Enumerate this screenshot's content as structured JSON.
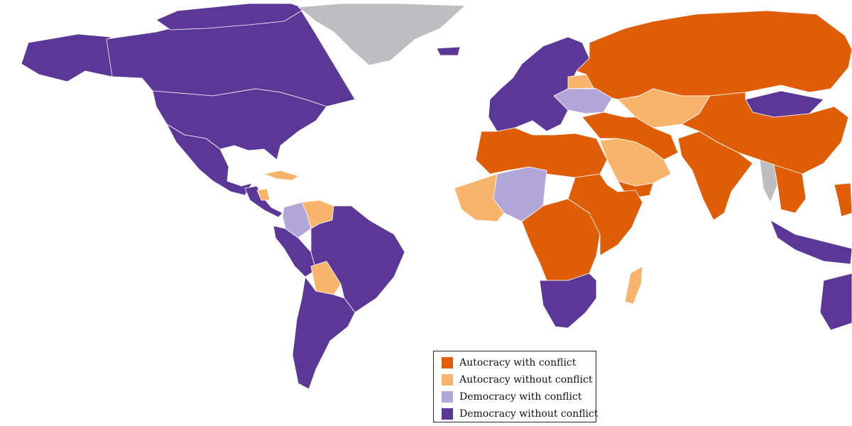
{
  "colors": {
    "autocracy_with_conflict": "#e05d08",
    "autocracy_without_conflict": "#f9b46b",
    "democracy_with_conflict": "#b0a6d8",
    "democracy_without_conflict": "#5b3898",
    "no_data": "#bebdc0",
    "border": "#ffffff"
  },
  "legend": {
    "items": [
      {
        "label": "Autocracy with conflict",
        "color": "#e05d08"
      },
      {
        "label": "Autocracy without conflict",
        "color": "#f9b46b"
      },
      {
        "label": "Democracy with conflict",
        "color": "#b0a6d8"
      },
      {
        "label": "Democracy without conflict",
        "color": "#5b3898"
      }
    ]
  },
  "regions": [
    {
      "name": "Canada",
      "category": "democracy_without_conflict"
    },
    {
      "name": "United States",
      "category": "democracy_without_conflict"
    },
    {
      "name": "Alaska",
      "category": "democracy_without_conflict"
    },
    {
      "name": "Mexico",
      "category": "democracy_without_conflict"
    },
    {
      "name": "Central America",
      "category": "democracy_without_conflict"
    },
    {
      "name": "Cuba",
      "category": "autocracy_without_conflict"
    },
    {
      "name": "Nicaragua",
      "category": "autocracy_without_conflict"
    },
    {
      "name": "Colombia",
      "category": "democracy_with_conflict"
    },
    {
      "name": "Venezuela",
      "category": "autocracy_without_conflict"
    },
    {
      "name": "Brazil",
      "category": "democracy_without_conflict"
    },
    {
      "name": "Peru / Ecuador",
      "category": "democracy_without_conflict"
    },
    {
      "name": "Bolivia",
      "category": "autocracy_without_conflict"
    },
    {
      "name": "Southern Cone",
      "category": "democracy_without_conflict"
    },
    {
      "name": "Greenland",
      "category": "no_data"
    },
    {
      "name": "Iceland",
      "category": "democracy_without_conflict"
    },
    {
      "name": "Europe",
      "category": "democracy_without_conflict"
    },
    {
      "name": "Ukraine",
      "category": "democracy_with_conflict"
    },
    {
      "name": "Belarus",
      "category": "autocracy_without_conflict"
    },
    {
      "name": "Russia",
      "category": "autocracy_with_conflict"
    },
    {
      "name": "Kazakhstan",
      "category": "autocracy_without_conflict"
    },
    {
      "name": "Mongolia",
      "category": "democracy_without_conflict"
    },
    {
      "name": "China",
      "category": "autocracy_with_conflict"
    },
    {
      "name": "Middle East",
      "category": "autocracy_with_conflict"
    },
    {
      "name": "Saudi Arabia",
      "category": "autocracy_without_conflict"
    },
    {
      "name": "Yemen",
      "category": "autocracy_with_conflict"
    },
    {
      "name": "India",
      "category": "autocracy_with_conflict"
    },
    {
      "name": "Myanmar",
      "category": "no_data"
    },
    {
      "name": "Southeast Asia",
      "category": "autocracy_with_conflict"
    },
    {
      "name": "Indonesia",
      "category": "democracy_without_conflict"
    },
    {
      "name": "Philippines",
      "category": "autocracy_with_conflict"
    },
    {
      "name": "Australia",
      "category": "democracy_without_conflict"
    },
    {
      "name": "North Africa",
      "category": "autocracy_with_conflict"
    },
    {
      "name": "Mali / Niger",
      "category": "democracy_with_conflict"
    },
    {
      "name": "West Africa",
      "category": "autocracy_without_conflict"
    },
    {
      "name": "Central Africa",
      "category": "autocracy_with_conflict"
    },
    {
      "name": "East Africa",
      "category": "autocracy_with_conflict"
    },
    {
      "name": "Southern Africa",
      "category": "democracy_without_conflict"
    },
    {
      "name": "Madagascar",
      "category": "autocracy_without_conflict"
    }
  ]
}
